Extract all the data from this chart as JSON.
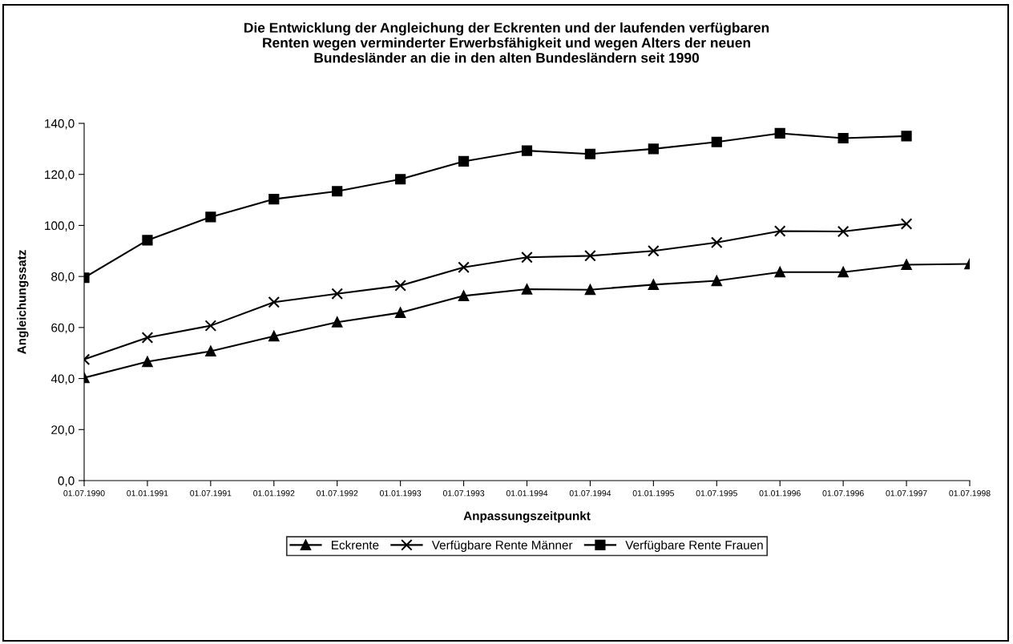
{
  "chart_data": {
    "type": "line",
    "title": "Die Entwicklung der Angleichung der Eckrenten und der laufenden verfügbaren\nRenten wegen verminderter Erwerbsfähigkeit und wegen Alters der neuen\nBundesländer an die in den alten Bundesländern seit 1990",
    "xlabel": "Anpassungszeitpunkt",
    "ylabel": "Angleichungssatz",
    "categories": [
      "01.07.1990",
      "01.01.1991",
      "01.07.1991",
      "01.01.1992",
      "01.07.1992",
      "01.01.1993",
      "01.07.1993",
      "01.01.1994",
      "01.07.1994",
      "01.01.1995",
      "01.07.1995",
      "01.01.1996",
      "01.07.1996",
      "01.07.1997",
      "01.07.1998"
    ],
    "series": [
      {
        "name": "Eckrente",
        "color": "#000000",
        "marker": "triangle",
        "values": [
          40.3,
          46.6,
          50.7,
          56.6,
          62.1,
          65.8,
          72.4,
          75.0,
          74.8,
          76.8,
          78.3,
          81.7,
          81.7,
          84.6,
          84.9
        ]
      },
      {
        "name": "Verfügbare Rente Männer",
        "color": "#000000",
        "marker": "cross",
        "values": [
          47.5,
          56.0,
          60.7,
          69.9,
          73.2,
          76.4,
          83.6,
          87.5,
          88.1,
          90.0,
          93.3,
          97.8,
          97.6,
          100.6,
          null
        ]
      },
      {
        "name": "Verfügbare Rente Frauen",
        "color": "#000000",
        "marker": "square",
        "values": [
          79.5,
          94.2,
          103.3,
          110.3,
          113.4,
          118.1,
          125.1,
          129.3,
          128.0,
          130.0,
          132.7,
          136.1,
          134.2,
          135.0,
          null
        ]
      }
    ],
    "ylim": [
      0,
      140
    ],
    "yticks": [
      {
        "value": 0,
        "label": "0,0"
      },
      {
        "value": 20,
        "label": "20,0"
      },
      {
        "value": 40,
        "label": "40,0"
      },
      {
        "value": 60,
        "label": "60,0"
      },
      {
        "value": 80,
        "label": "80,0"
      },
      {
        "value": 100,
        "label": "100,0"
      },
      {
        "value": 120,
        "label": "120,0"
      },
      {
        "value": 140,
        "label": "140,0"
      }
    ],
    "grid": false,
    "legend": "bottom",
    "line_style": "solid"
  }
}
